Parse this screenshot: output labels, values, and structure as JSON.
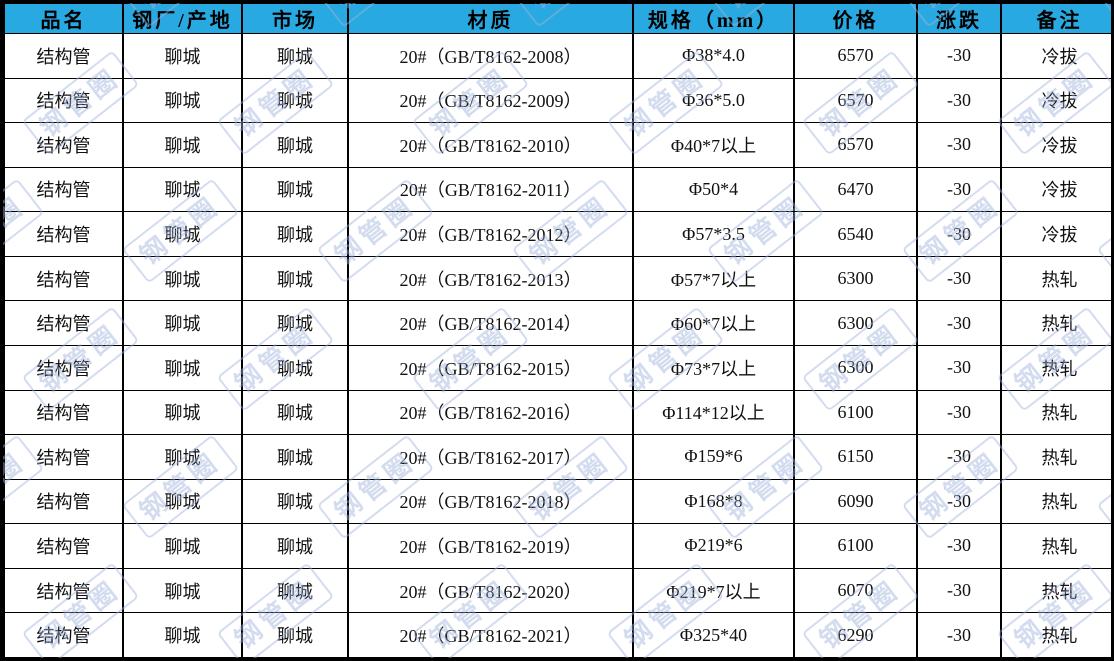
{
  "theme": {
    "header_bg": "#29a9e1",
    "grid_border": "#000000",
    "text_color": "#111111",
    "watermark_color": "#9fb3dc"
  },
  "watermark": {
    "text": "钢管圈"
  },
  "table": {
    "headers": [
      "品名",
      "钢厂/产地",
      "市场",
      "材质",
      "规格（mm）",
      "价格",
      "涨跌",
      "备注"
    ],
    "rows": [
      [
        "结构管",
        "聊城",
        "聊城",
        "20#（GB/T8162-2008）",
        "Φ38*4.0",
        "6570",
        "-30",
        "冷拔"
      ],
      [
        "结构管",
        "聊城",
        "聊城",
        "20#（GB/T8162-2009）",
        "Φ36*5.0",
        "6570",
        "-30",
        "冷拔"
      ],
      [
        "结构管",
        "聊城",
        "聊城",
        "20#（GB/T8162-2010）",
        "Φ40*7以上",
        "6570",
        "-30",
        "冷拔"
      ],
      [
        "结构管",
        "聊城",
        "聊城",
        "20#（GB/T8162-2011）",
        "Φ50*4",
        "6470",
        "-30",
        "冷拔"
      ],
      [
        "结构管",
        "聊城",
        "聊城",
        "20#（GB/T8162-2012）",
        "Φ57*3.5",
        "6540",
        "-30",
        "冷拔"
      ],
      [
        "结构管",
        "聊城",
        "聊城",
        "20#（GB/T8162-2013）",
        "Φ57*7以上",
        "6300",
        "-30",
        "热轧"
      ],
      [
        "结构管",
        "聊城",
        "聊城",
        "20#（GB/T8162-2014）",
        "Φ60*7以上",
        "6300",
        "-30",
        "热轧"
      ],
      [
        "结构管",
        "聊城",
        "聊城",
        "20#（GB/T8162-2015）",
        "Φ73*7以上",
        "6300",
        "-30",
        "热轧"
      ],
      [
        "结构管",
        "聊城",
        "聊城",
        "20#（GB/T8162-2016）",
        "Φ114*12以上",
        "6100",
        "-30",
        "热轧"
      ],
      [
        "结构管",
        "聊城",
        "聊城",
        "20#（GB/T8162-2017）",
        "Φ159*6",
        "6150",
        "-30",
        "热轧"
      ],
      [
        "结构管",
        "聊城",
        "聊城",
        "20#（GB/T8162-2018）",
        "Φ168*8",
        "6090",
        "-30",
        "热轧"
      ],
      [
        "结构管",
        "聊城",
        "聊城",
        "20#（GB/T8162-2019）",
        "Φ219*6",
        "6100",
        "-30",
        "热轧"
      ],
      [
        "结构管",
        "聊城",
        "聊城",
        "20#（GB/T8162-2020）",
        "Φ219*7以上",
        "6070",
        "-30",
        "热轧"
      ],
      [
        "结构管",
        "聊城",
        "聊城",
        "20#（GB/T8162-2021）",
        "Φ325*40",
        "6290",
        "-30",
        "热轧"
      ]
    ]
  }
}
